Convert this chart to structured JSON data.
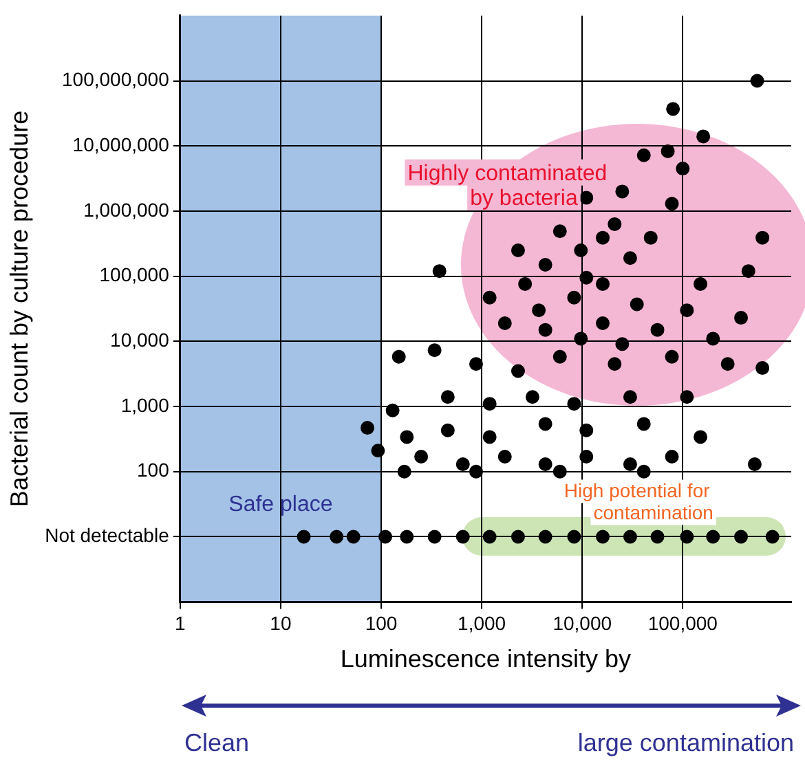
{
  "chart_data": {
    "type": "scatter",
    "xlabel": "Luminescence intensity by",
    "ylabel": "Bacterial count by culture procedure",
    "log": "xy",
    "grid": true,
    "legend": false,
    "marker": "circle",
    "xlim": [
      1,
      1200000
    ],
    "xticks": [
      1,
      10,
      100,
      {
        "value": 1000,
        "label": "1,000"
      },
      {
        "value": 10000,
        "label": "10,000"
      },
      {
        "value": 100000,
        "label": "100,000"
      }
    ],
    "ylim": [
      1,
      1000000000
    ],
    "yticks": [
      {
        "value": 10,
        "label": "Not detectable"
      },
      100,
      {
        "value": 1000,
        "label": "1,000"
      },
      {
        "value": 10000,
        "label": "10,000"
      },
      {
        "value": 100000,
        "label": "100,000"
      },
      {
        "value": 1000000,
        "label": "1,000,000"
      },
      {
        "value": 10000000,
        "label": "10,000,000"
      },
      {
        "value": 100000000,
        "label": "100,000,000"
      }
    ],
    "bands": [
      {
        "axis": "x",
        "from": 1,
        "to": 100,
        "label": "Safe place",
        "color": "#a4c2e6"
      }
    ],
    "annotations": [
      "Highly contaminated by bacteria",
      "High potential for contamination",
      "Clean",
      "large contamination"
    ],
    "series": [
      {
        "color": "#000000",
        "x": [
          550000,
          80000,
          160000,
          71000,
          100000,
          41000,
          25000,
          78000,
          11000,
          21000,
          6000,
          2300,
          4300,
          11000,
          16000,
          30000,
          35000,
          8300,
          2700,
          1200,
          380,
          1700,
          4300,
          16000,
          56000,
          200000,
          450000,
          620000,
          380000,
          150,
          340,
          880,
          2300,
          6000,
          21000,
          78000,
          280000,
          620000,
          130,
          460,
          1200,
          3200,
          8300,
          30000,
          110000,
          73,
          180,
          460,
          1200,
          4300,
          11000,
          41000,
          150000,
          93,
          250,
          650,
          1700,
          4300,
          11000,
          30000,
          78000,
          170,
          880,
          6000,
          41000,
          520000,
          16000,
          9700,
          3700,
          25000,
          9700,
          110000,
          150000,
          48000,
          17,
          36,
          53,
          110,
          180,
          340,
          650,
          1200,
          2300,
          4300,
          8300,
          16000,
          30000,
          56000,
          110000,
          200000,
          380000,
          780000
        ],
        "values": [
          100000000,
          37000000,
          14000000,
          8300000,
          4500000,
          7200000,
          2000000,
          1300000,
          1600000,
          630000,
          490000,
          250000,
          150000,
          95000,
          76000,
          190000,
          37000,
          47000,
          76000,
          47000,
          120000,
          19000,
          15000,
          19000,
          15000,
          11000,
          120000,
          390000,
          23000,
          5800,
          7300,
          4500,
          3500,
          5800,
          4500,
          5800,
          4500,
          3900,
          870,
          1400,
          1100,
          1400,
          1100,
          1400,
          1400,
          470,
          340,
          430,
          340,
          540,
          430,
          540,
          340,
          210,
          170,
          130,
          170,
          130,
          170,
          130,
          170,
          100,
          100,
          100,
          100,
          130,
          390000,
          250000,
          30000,
          9100,
          11000,
          30000,
          76000,
          390000,
          10,
          10,
          10,
          10,
          10,
          10,
          10,
          10,
          10,
          10,
          10,
          10,
          10,
          10,
          10,
          10,
          10,
          10
        ]
      }
    ]
  }
}
